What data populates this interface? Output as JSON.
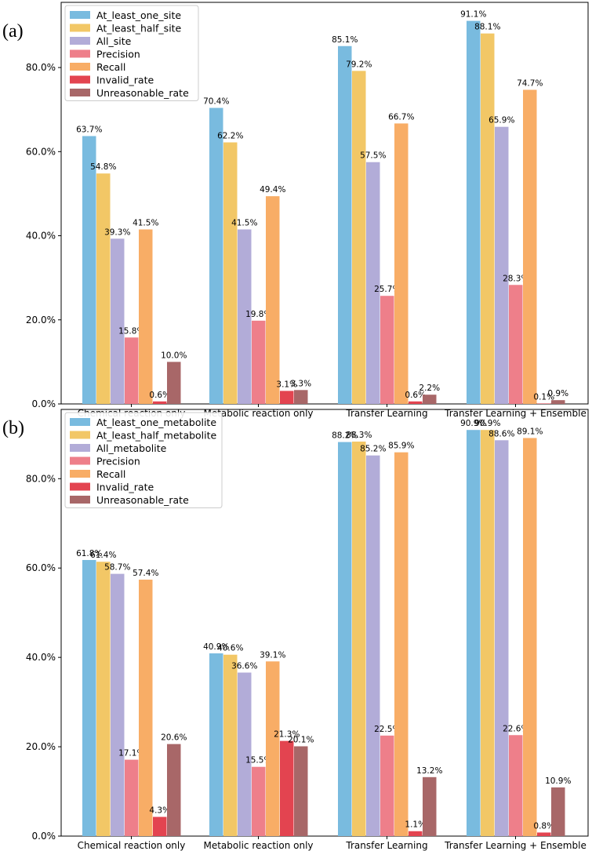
{
  "colors": {
    "At_least": "#79bbdf",
    "At_least_half": "#f2c766",
    "All": "#b2acd8",
    "Precision": "#ee7f8a",
    "Recall": "#f8ad66",
    "Invalid_rate": "#e34450",
    "Unreasonable_rate": "#a86768"
  },
  "chart_data": [
    {
      "panel": "(a)",
      "type": "bar",
      "categories": [
        "Chemical reaction only",
        "Metabolic reaction only",
        "Transfer Learning",
        "Transfer Learning + Ensemble"
      ],
      "yticks": [
        "0.0%",
        "20.0%",
        "40.0%",
        "60.0%",
        "80.0%"
      ],
      "ylim": [
        0,
        95.5
      ],
      "legend_position": "upper-left",
      "series": [
        {
          "name": "At_least_one_site",
          "color_key": "At_least",
          "values": [
            63.7,
            70.4,
            85.1,
            91.1
          ],
          "labels": [
            "63.7%",
            "70.4%",
            "85.1%",
            "91.1%"
          ]
        },
        {
          "name": "At_least_half_site",
          "color_key": "At_least_half",
          "values": [
            54.8,
            62.2,
            79.2,
            88.1
          ],
          "labels": [
            "54.8%",
            "62.2%",
            "79.2%",
            "88.1%"
          ]
        },
        {
          "name": "All_site",
          "color_key": "All",
          "values": [
            39.3,
            41.5,
            57.5,
            65.9
          ],
          "labels": [
            "39.3%",
            "41.5%",
            "57.5%",
            "65.9%"
          ]
        },
        {
          "name": "Precision",
          "color_key": "Precision",
          "values": [
            15.8,
            19.8,
            25.7,
            28.3
          ],
          "labels": [
            "15.8%",
            "19.8%",
            "25.7%",
            "28.3%"
          ]
        },
        {
          "name": "Recall",
          "color_key": "Recall",
          "values": [
            41.5,
            49.4,
            66.7,
            74.7
          ],
          "labels": [
            "41.5%",
            "49.4%",
            "66.7%",
            "74.7%"
          ]
        },
        {
          "name": "Invalid_rate",
          "color_key": "Invalid_rate",
          "values": [
            0.6,
            3.1,
            0.6,
            0.1
          ],
          "labels": [
            "0.6%",
            "3.1%",
            "0.6%",
            "0.1%"
          ]
        },
        {
          "name": "Unreasonable_rate",
          "color_key": "Unreasonable_rate",
          "values": [
            10.0,
            3.3,
            2.2,
            0.9
          ],
          "labels": [
            "10.0%",
            "3.3%",
            "2.2%",
            "0.9%"
          ]
        }
      ]
    },
    {
      "panel": "(b)",
      "type": "bar",
      "categories": [
        "Chemical reaction only",
        "Metabolic reaction only",
        "Transfer Learning",
        "Transfer Learning + Ensemble"
      ],
      "yticks": [
        "0.0%",
        "20.0%",
        "40.0%",
        "60.0%",
        "80.0%"
      ],
      "ylim": [
        0,
        95.5
      ],
      "legend_position": "upper-left",
      "series": [
        {
          "name": "At_least_one_metabolite",
          "color_key": "At_least",
          "values": [
            61.8,
            40.9,
            88.2,
            90.9
          ],
          "labels": [
            "61.8%",
            "40.9%",
            "88.2%",
            "90.9%"
          ]
        },
        {
          "name": "At_least_half_metabolite",
          "color_key": "At_least_half",
          "values": [
            61.4,
            40.6,
            88.3,
            90.9
          ],
          "labels": [
            "61.4%",
            "40.6%",
            "88.3%",
            "90.9%"
          ]
        },
        {
          "name": "All_metabolite",
          "color_key": "All",
          "values": [
            58.7,
            36.6,
            85.2,
            88.6
          ],
          "labels": [
            "58.7%",
            "36.6%",
            "85.2%",
            "88.6%"
          ]
        },
        {
          "name": "Precision",
          "color_key": "Precision",
          "values": [
            17.1,
            15.5,
            22.5,
            22.6
          ],
          "labels": [
            "17.1%",
            "15.5%",
            "22.5%",
            "22.6%"
          ]
        },
        {
          "name": "Recall",
          "color_key": "Recall",
          "values": [
            57.4,
            39.1,
            85.9,
            89.1
          ],
          "labels": [
            "57.4%",
            "39.1%",
            "85.9%",
            "89.1%"
          ]
        },
        {
          "name": "Invalid_rate",
          "color_key": "Invalid_rate",
          "values": [
            4.3,
            21.3,
            1.1,
            0.8
          ],
          "labels": [
            "4.3%",
            "21.3%",
            "1.1%",
            "0.8%"
          ]
        },
        {
          "name": "Unreasonable_rate",
          "color_key": "Unreasonable_rate",
          "values": [
            20.6,
            20.1,
            13.2,
            10.9
          ],
          "labels": [
            "20.6%",
            "20.1%",
            "13.2%",
            "10.9%"
          ]
        }
      ]
    }
  ]
}
